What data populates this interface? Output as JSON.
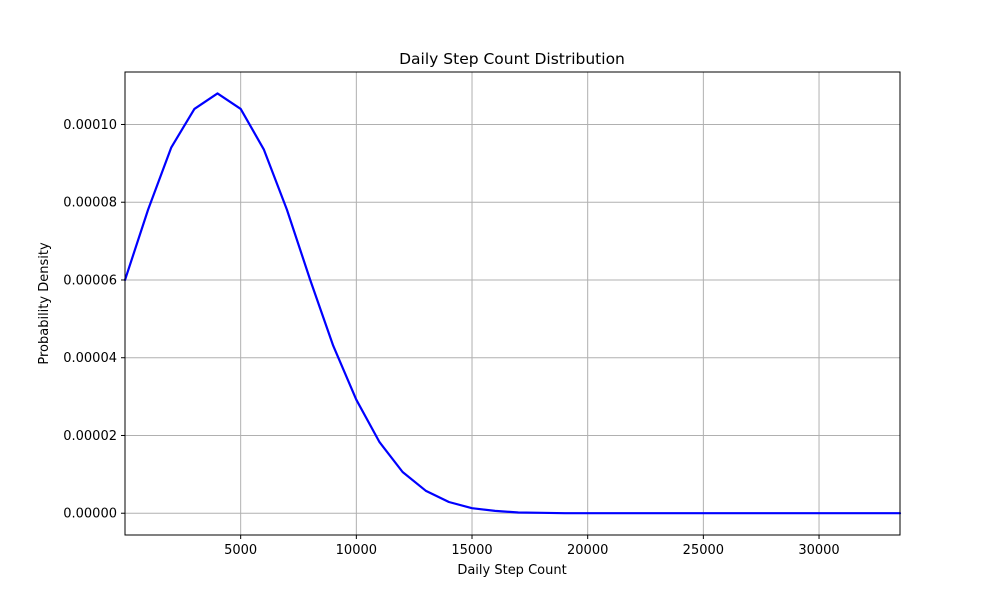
{
  "chart_data": {
    "type": "line",
    "title": "Daily Step Count Distribution",
    "xlabel": "Daily Step Count",
    "ylabel": "Probability Density",
    "xlim": [
      0,
      33500
    ],
    "ylim": [
      -5.6e-06,
      0.0001135
    ],
    "xticks": [
      5000,
      10000,
      15000,
      20000,
      25000,
      30000
    ],
    "xtick_labels": [
      "5000",
      "10000",
      "15000",
      "20000",
      "25000",
      "30000"
    ],
    "yticks": [
      0,
      2e-05,
      4e-05,
      6e-05,
      8e-05,
      0.0001
    ],
    "ytick_labels": [
      "0.00000",
      "0.00002",
      "0.00004",
      "0.00006",
      "0.00008",
      "0.00010"
    ],
    "grid": true,
    "series": [
      {
        "color": "#0000ff",
        "x": [
          0,
          1000,
          2000,
          3000,
          4000,
          5000,
          6000,
          7000,
          8000,
          9000,
          10000,
          11000,
          12000,
          13000,
          14000,
          15000,
          16000,
          17000,
          18000,
          19000,
          20000,
          22000,
          25000,
          28000,
          31000,
          33500
        ],
        "y": [
          6e-05,
          7.81e-05,
          9.41e-05,
          0.000104,
          0.000108,
          0.000104,
          9.36e-05,
          7.81e-05,
          6.01e-05,
          4.31e-05,
          2.92e-05,
          1.83e-05,
          1.06e-05,
          5.8e-06,
          2.9e-06,
          1.3e-06,
          6e-07,
          2e-07,
          1e-07,
          0.0,
          0.0,
          0.0,
          0.0,
          0.0,
          0.0,
          0.0
        ]
      }
    ]
  }
}
